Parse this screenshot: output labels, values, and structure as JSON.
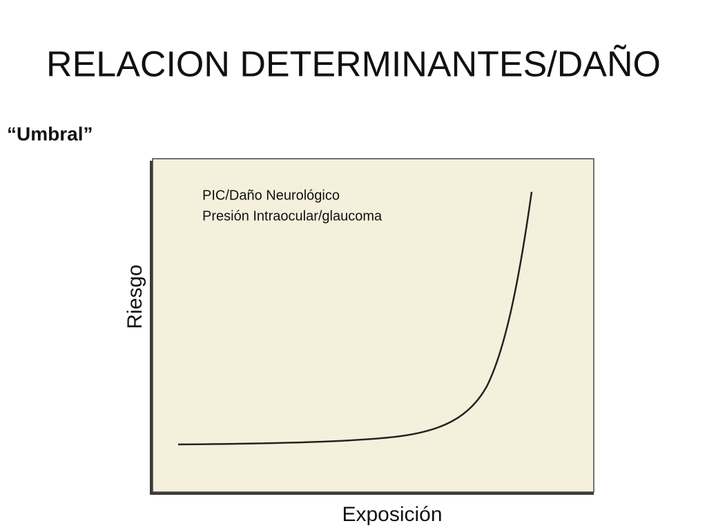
{
  "slide": {
    "title": "RELACION DETERMINANTES/DAÑO",
    "subtitle": "“Umbral”",
    "graph": {
      "legend": [
        "PIC/Daño Neurológico",
        "Presión Intraocular/glaucoma"
      ],
      "y_label": "Riesgo",
      "x_label": "Exposición"
    }
  }
}
